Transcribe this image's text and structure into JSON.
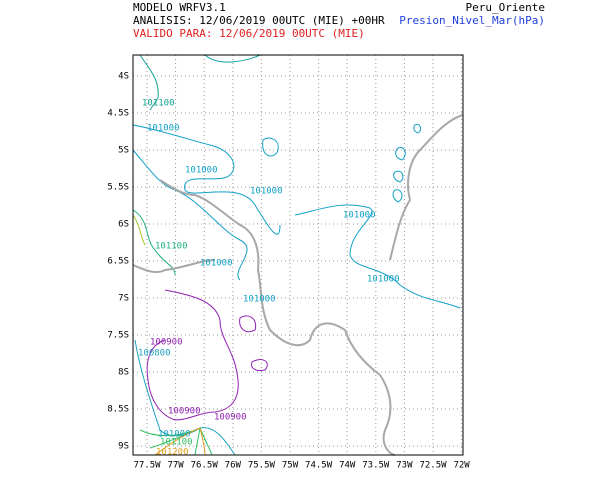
{
  "header": {
    "model": "MODELO WRFV3.1",
    "analysis": "ANALISIS: 12/06/2019 00UTC (MIE) +00HR",
    "valid": "VALIDO PARA: 12/06/2019 00UTC (MIE)",
    "region": "Peru_Oriente",
    "variable": "Presion_Nivel_Mar(hPa)"
  },
  "map": {
    "lat_labels": [
      "4S",
      "4.5S",
      "5S",
      "5.5S",
      "6S",
      "6.5S",
      "7S",
      "7.5S",
      "8S",
      "8.5S",
      "9S"
    ],
    "lon_labels": [
      "77.5W",
      "77W",
      "76.5W",
      "76W",
      "75.5W",
      "75W",
      "74.5W",
      "74W",
      "73.5W",
      "73W",
      "72.5W",
      "72W"
    ],
    "contour_labels": [
      "101100",
      "101000",
      "101000",
      "101000",
      "101000",
      "101100",
      "101000",
      "101000",
      "101000",
      "100900",
      "100800",
      "100900",
      "100900",
      "101000",
      "101100",
      "101200"
    ]
  }
}
